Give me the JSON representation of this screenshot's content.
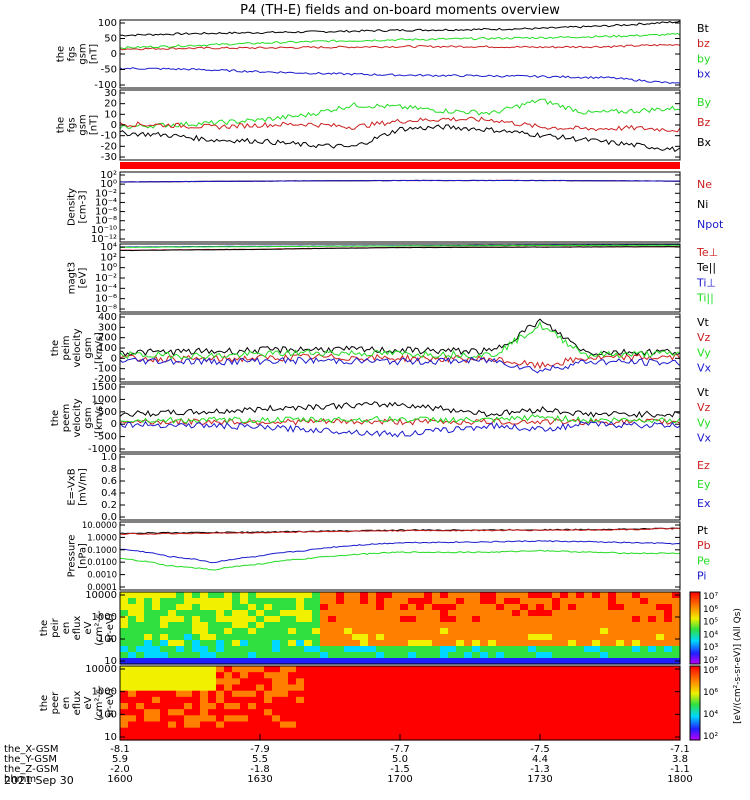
{
  "title": "P4 (TH-E) fields and on-board moments overview",
  "colors": {
    "black": "#000000",
    "red": "#cc1f1f",
    "green": "#22dd22",
    "blue": "#1a1acc"
  },
  "panels": [
    {
      "ylabel": [
        "the",
        "fgs",
        "gsm",
        "[nT]"
      ],
      "ticks": [
        "100",
        "50",
        "0",
        "-50",
        "-100"
      ],
      "legend": [
        {
          "text": "Bt",
          "color": "black"
        },
        {
          "text": "bz",
          "color": "red"
        },
        {
          "text": "by",
          "color": "green"
        },
        {
          "text": "bx",
          "color": "blue"
        }
      ]
    },
    {
      "ylabel": [
        "the",
        "fgs",
        "gsm",
        "[nT]"
      ],
      "ticks": [
        "30",
        "20",
        "10",
        "0",
        "-10",
        "-20",
        "-30"
      ],
      "legend": [
        {
          "text": "By",
          "color": "green"
        },
        {
          "text": "Bz",
          "color": "red"
        },
        {
          "text": "Bx",
          "color": "black"
        }
      ]
    },
    {
      "ylabel": [
        "Density",
        "[cm-3]"
      ],
      "ticks": [
        "10²",
        "10⁰",
        "10⁻²",
        "10⁻⁴",
        "10⁻⁶",
        "10⁻⁸",
        "10⁻¹⁰",
        "10⁻¹²"
      ],
      "legend": [
        {
          "text": "Ne",
          "color": "red"
        },
        {
          "text": "Ni",
          "color": "black"
        },
        {
          "text": "Npot",
          "color": "blue"
        }
      ]
    },
    {
      "ylabel": [
        "magt3",
        "[eV]"
      ],
      "ticks": [
        "10⁴",
        "10²",
        "10⁰",
        "10⁻²",
        "10⁻⁴",
        "10⁻⁶",
        "10⁻⁸"
      ],
      "legend": [
        {
          "text": "Te⊥",
          "color": "red"
        },
        {
          "text": "Te||",
          "color": "black"
        },
        {
          "text": "Ti⊥",
          "color": "blue"
        },
        {
          "text": "Ti||",
          "color": "green"
        }
      ]
    },
    {
      "ylabel": [
        "the",
        "peim",
        "velocity",
        "gsm",
        "[km/s]"
      ],
      "ticks": [
        "400",
        "300",
        "200",
        "100",
        "0",
        "-100",
        "-200"
      ],
      "legend": [
        {
          "text": "Vt",
          "color": "black"
        },
        {
          "text": "Vz",
          "color": "red"
        },
        {
          "text": "Vy",
          "color": "green"
        },
        {
          "text": "Vx",
          "color": "blue"
        }
      ]
    },
    {
      "ylabel": [
        "the",
        "peem",
        "velocity",
        "gsm",
        "[km/s]"
      ],
      "ticks": [
        "1500",
        "1000",
        "500",
        "0",
        "-500",
        "-1000"
      ],
      "legend": [
        {
          "text": "Vt",
          "color": "black"
        },
        {
          "text": "Vz",
          "color": "red"
        },
        {
          "text": "Vy",
          "color": "green"
        },
        {
          "text": "Vx",
          "color": "blue"
        }
      ]
    },
    {
      "ylabel": [
        "E=-VxB",
        "[mV/m]"
      ],
      "ticks": [
        "1.0",
        "0.8",
        "0.6",
        "0.4",
        "0.2",
        "0.0"
      ],
      "legend": [
        {
          "text": "Ez",
          "color": "red"
        },
        {
          "text": "Ey",
          "color": "green"
        },
        {
          "text": "Ex",
          "color": "blue"
        }
      ]
    },
    {
      "ylabel": [
        "Pressure",
        "[nPa]"
      ],
      "ticks": [
        "10.0000",
        "1.0000",
        "0.1000",
        "0.0100",
        "0.0010",
        "0.0001"
      ],
      "legend": [
        {
          "text": "Pt",
          "color": "black"
        },
        {
          "text": "Pb",
          "color": "red"
        },
        {
          "text": "Pe",
          "color": "green"
        },
        {
          "text": "Pi",
          "color": "blue"
        }
      ]
    },
    {
      "ylabel": [
        "the",
        "peir",
        "en",
        "eflux",
        "eV",
        "(cm²-s-",
        "sr-eV)"
      ],
      "ticks": [
        "10000",
        "1000",
        "100",
        "10"
      ],
      "legend": []
    },
    {
      "ylabel": [
        "the",
        "peer",
        "en",
        "eflux",
        "eV",
        "(cm²-s-",
        "sr-eV)"
      ],
      "ticks": [
        "10000",
        "1000",
        "100",
        "10"
      ],
      "legend": []
    }
  ],
  "colorbar_top": {
    "ticks": [
      "10⁷",
      "10⁶",
      "10⁵",
      "10⁴",
      "10³",
      "10²"
    ],
    "label": "[eV/(cm²-s-sr-eV)] (All Qs)"
  },
  "colorbar_bottom": {
    "ticks": [
      "10⁸",
      "10⁶",
      "10⁴",
      "10²"
    ],
    "label": "[eV/(cm²-s-sr-eV)] (All Qs)"
  },
  "x_axis": {
    "rows": [
      {
        "label": "the_X-GSM",
        "values": [
          "-8.1",
          "-7.9",
          "-7.7",
          "-7.5",
          "-7.1"
        ]
      },
      {
        "label": "the_Y-GSM",
        "values": [
          "5.9",
          "5.5",
          "5.0",
          "4.4",
          "3.8"
        ]
      },
      {
        "label": "the_Z-GSM",
        "values": [
          "-2.0",
          "-1.8",
          "-1.5",
          "-1.3",
          "-1.1"
        ]
      },
      {
        "label": "hhmm",
        "values": [
          "1600",
          "1630",
          "1700",
          "1730",
          "1800"
        ]
      }
    ],
    "date": "2021 Sep 30"
  },
  "chart_data": {
    "type": "line",
    "title": "P4 (TH-E) fields and on-board moments overview",
    "x_label": "hhmm",
    "x_range": [
      "1600",
      "1800"
    ],
    "x_ticks": [
      "1600",
      "1630",
      "1700",
      "1730",
      "1800"
    ],
    "panels": [
      {
        "name": "fgs gsm",
        "units": "nT",
        "ylim": [
          -100,
          100
        ],
        "x": [
          1600,
          1615,
          1630,
          1645,
          1700,
          1715,
          1730,
          1745,
          1800
        ],
        "series": [
          {
            "name": "Bt",
            "color": "black",
            "values": [
              55,
              60,
              63,
              66,
              70,
              72,
              75,
              83,
              95
            ]
          },
          {
            "name": "bz",
            "color": "red",
            "values": [
              15,
              17,
              18,
              20,
              22,
              22,
              20,
              22,
              28
            ]
          },
          {
            "name": "by",
            "color": "green",
            "values": [
              18,
              25,
              32,
              38,
              42,
              45,
              48,
              52,
              58
            ]
          },
          {
            "name": "bx",
            "color": "blue",
            "values": [
              -42,
              -45,
              -52,
              -58,
              -62,
              -64,
              -66,
              -70,
              -88
            ]
          }
        ]
      },
      {
        "name": "fgs gsm",
        "units": "nT",
        "ylim": [
          -35,
          35
        ],
        "x": [
          1600,
          1610,
          1620,
          1630,
          1640,
          1650,
          1700,
          1710,
          1720,
          1730,
          1740,
          1750,
          1800
        ],
        "series": [
          {
            "name": "By",
            "color": "green",
            "values": [
              -2,
              0,
              2,
              5,
              10,
              20,
              18,
              14,
              12,
              25,
              12,
              14,
              17
            ]
          },
          {
            "name": "Bz",
            "color": "red",
            "values": [
              1,
              0,
              -2,
              0,
              1,
              -2,
              4,
              6,
              5,
              -2,
              -4,
              -3,
              -5
            ]
          },
          {
            "name": "Bx",
            "color": "black",
            "values": [
              -8,
              -10,
              -15,
              -16,
              -20,
              -22,
              -4,
              -2,
              -5,
              -10,
              -15,
              -20,
              -25
            ]
          }
        ]
      },
      {
        "name": "Density",
        "units": "cm-3",
        "scale": "log",
        "ylim": [
          1e-12,
          100
        ],
        "x": [
          1600,
          1630,
          1700,
          1730,
          1800
        ],
        "series": [
          {
            "name": "Ne",
            "color": "red",
            "values": [
              1,
              1.5,
              2,
              2,
              1.5
            ]
          },
          {
            "name": "Ni",
            "color": "black",
            "values": [
              1,
              1.5,
              2,
              2,
              1.5
            ]
          },
          {
            "name": "Npot",
            "color": "blue",
            "values": [
              1,
              1.5,
              2,
              2,
              1.5
            ]
          }
        ]
      },
      {
        "name": "magt3",
        "units": "eV",
        "scale": "log",
        "ylim": [
          1e-08,
          10000
        ],
        "x": [
          1600,
          1630,
          1700,
          1730,
          1800
        ],
        "series": [
          {
            "name": "Te⊥",
            "color": "red",
            "values": [
              800,
              1200,
              2500,
              3000,
              3500
            ]
          },
          {
            "name": "Te||",
            "color": "black",
            "values": [
              700,
              1100,
              2300,
              2800,
              3300
            ]
          },
          {
            "name": "Ti⊥",
            "color": "blue",
            "values": [
              3000,
              4000,
              5000,
              6000,
              7000
            ]
          },
          {
            "name": "Ti||",
            "color": "green",
            "values": [
              2500,
              3500,
              4500,
              5500,
              6000
            ]
          }
        ]
      },
      {
        "name": "peim velocity gsm",
        "units": "km/s",
        "ylim": [
          -200,
          400
        ],
        "x": [
          1600,
          1620,
          1640,
          1700,
          1720,
          1730,
          1740,
          1800
        ],
        "series": [
          {
            "name": "Vt",
            "color": "black",
            "values": [
              60,
              70,
              90,
              80,
              70,
              340,
              60,
              70
            ]
          },
          {
            "name": "Vz",
            "color": "red",
            "values": [
              10,
              0,
              20,
              10,
              0,
              -60,
              10,
              20
            ]
          },
          {
            "name": "Vy",
            "color": "green",
            "values": [
              40,
              30,
              60,
              50,
              40,
              300,
              40,
              50
            ]
          },
          {
            "name": "Vx",
            "color": "blue",
            "values": [
              -10,
              -20,
              -10,
              -20,
              -10,
              -100,
              -20,
              -30
            ]
          }
        ]
      },
      {
        "name": "peem velocity gsm",
        "units": "km/s",
        "ylim": [
          -1200,
          1500
        ],
        "x": [
          1600,
          1620,
          1640,
          1700,
          1720,
          1730,
          1740,
          1800
        ],
        "series": [
          {
            "name": "Vt",
            "color": "black",
            "values": [
              300,
              400,
              600,
              700,
              300,
              500,
              300,
              300
            ]
          },
          {
            "name": "Vz",
            "color": "red",
            "values": [
              0,
              0,
              0,
              0,
              0,
              0,
              0,
              0
            ]
          },
          {
            "name": "Vy",
            "color": "green",
            "values": [
              50,
              60,
              80,
              100,
              50,
              200,
              60,
              80
            ]
          },
          {
            "name": "Vx",
            "color": "blue",
            "values": [
              -100,
              -150,
              -300,
              -500,
              -150,
              -300,
              -100,
              -150
            ]
          }
        ]
      },
      {
        "name": "E=-VxB",
        "units": "mV/m",
        "ylim": [
          0,
          1.0
        ],
        "series": [
          {
            "name": "Ez",
            "color": "red",
            "values": []
          },
          {
            "name": "Ey",
            "color": "green",
            "values": []
          },
          {
            "name": "Ex",
            "color": "blue",
            "values": []
          }
        ]
      },
      {
        "name": "Pressure",
        "units": "nPa",
        "scale": "log",
        "ylim": [
          0.0001,
          10
        ],
        "x": [
          1600,
          1610,
          1620,
          1630,
          1640,
          1700,
          1720,
          1730,
          1740,
          1750,
          1800
        ],
        "series": [
          {
            "name": "Pt",
            "color": "black",
            "values": [
              1.5,
              1.6,
              1.7,
              1.8,
              2.0,
              2.5,
              2.6,
              2.7,
              2.8,
              3.0,
              3.5
            ]
          },
          {
            "name": "Pb",
            "color": "red",
            "values": [
              1.3,
              1.4,
              1.5,
              1.6,
              1.9,
              2.3,
              2.4,
              2.5,
              2.6,
              2.8,
              3.3
            ]
          },
          {
            "name": "Pe",
            "color": "green",
            "values": [
              0.02,
              0.006,
              0.003,
              0.008,
              0.02,
              0.06,
              0.06,
              0.08,
              0.06,
              0.05,
              0.05
            ]
          },
          {
            "name": "Pi",
            "color": "blue",
            "values": [
              0.1,
              0.03,
              0.01,
              0.03,
              0.08,
              0.3,
              0.35,
              0.4,
              0.35,
              0.3,
              0.25
            ]
          }
        ]
      },
      {
        "name": "peir en eflux",
        "type": "heatmap",
        "units": "eV/(cm²-s-sr-eV)",
        "ylim": [
          5,
          20000
        ],
        "clim": [
          100,
          10000000
        ]
      },
      {
        "name": "peer en eflux",
        "type": "heatmap",
        "units": "eV/(cm²-s-sr-eV)",
        "ylim": [
          5,
          20000
        ],
        "clim": [
          100,
          100000000
        ]
      }
    ]
  }
}
